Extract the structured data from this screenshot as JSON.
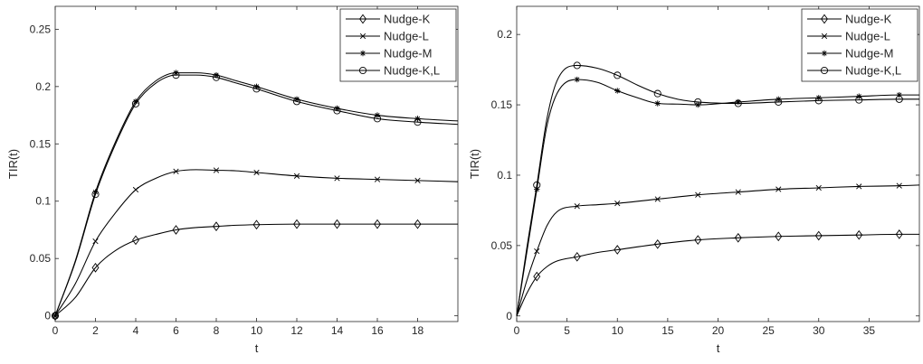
{
  "chart_data": [
    {
      "type": "line",
      "xlabel": "t",
      "ylabel": "TIR(t)",
      "xlim": [
        0,
        20
      ],
      "ylim": [
        -0.005,
        0.27
      ],
      "xticks": [
        0,
        2,
        4,
        6,
        8,
        10,
        12,
        14,
        16,
        18
      ],
      "yticks": [
        0,
        0.05,
        0.1,
        0.15,
        0.2,
        0.25
      ],
      "xtick_labels": [
        "0",
        "2",
        "4",
        "6",
        "8",
        "10",
        "12",
        "14",
        "16",
        "18"
      ],
      "ytick_labels": [
        "0",
        "0.05",
        "0.1",
        "0.15",
        "0.2",
        "0.25"
      ],
      "grid": false,
      "legend_position": "top-right",
      "series": [
        {
          "name": "Nudge-K",
          "marker": "diamond",
          "x": [
            0,
            1,
            2,
            3,
            4,
            5,
            6,
            7,
            8,
            9,
            10,
            12,
            14,
            16,
            18,
            20
          ],
          "y": [
            0,
            0.016,
            0.042,
            0.057,
            0.066,
            0.071,
            0.075,
            0.077,
            0.078,
            0.079,
            0.0795,
            0.08,
            0.08,
            0.08,
            0.08,
            0.08
          ],
          "marker_x": [
            0,
            2,
            4,
            6,
            8,
            10,
            12,
            14,
            16,
            18
          ]
        },
        {
          "name": "Nudge-L",
          "marker": "x",
          "x": [
            0,
            1,
            2,
            3,
            4,
            5,
            6,
            7,
            8,
            9,
            10,
            12,
            14,
            16,
            18,
            20
          ],
          "y": [
            0,
            0.028,
            0.065,
            0.09,
            0.11,
            0.12,
            0.126,
            0.1275,
            0.127,
            0.1265,
            0.125,
            0.122,
            0.12,
            0.119,
            0.118,
            0.117
          ],
          "marker_x": [
            0,
            2,
            4,
            6,
            8,
            10,
            12,
            14,
            16,
            18
          ]
        },
        {
          "name": "Nudge-M",
          "marker": "star",
          "x": [
            0,
            1,
            2,
            3,
            4,
            5,
            6,
            7,
            8,
            9,
            10,
            12,
            14,
            16,
            18,
            20
          ],
          "y": [
            0,
            0.048,
            0.108,
            0.152,
            0.187,
            0.205,
            0.212,
            0.212,
            0.21,
            0.205,
            0.2,
            0.189,
            0.181,
            0.175,
            0.172,
            0.17
          ],
          "marker_x": [
            0,
            2,
            4,
            6,
            8,
            10,
            12,
            14,
            16,
            18
          ]
        },
        {
          "name": "Nudge-K,L",
          "marker": "circle",
          "x": [
            0,
            1,
            2,
            3,
            4,
            5,
            6,
            7,
            8,
            9,
            10,
            12,
            14,
            16,
            18,
            20
          ],
          "y": [
            0,
            0.047,
            0.106,
            0.15,
            0.185,
            0.203,
            0.21,
            0.21,
            0.208,
            0.203,
            0.198,
            0.187,
            0.179,
            0.172,
            0.169,
            0.167
          ],
          "marker_x": [
            0,
            2,
            4,
            6,
            8,
            10,
            12,
            14,
            16,
            18
          ]
        }
      ]
    },
    {
      "type": "line",
      "xlabel": "t",
      "ylabel": "TIR(t)",
      "xlim": [
        0,
        40
      ],
      "ylim": [
        -0.004,
        0.22
      ],
      "xticks": [
        0,
        5,
        10,
        15,
        20,
        25,
        30,
        35
      ],
      "yticks": [
        0,
        0.05,
        0.1,
        0.15,
        0.2
      ],
      "xtick_labels": [
        "0",
        "5",
        "10",
        "15",
        "20",
        "25",
        "30",
        "35"
      ],
      "ytick_labels": [
        "0",
        "0.05",
        "0.1",
        "0.15",
        "0.2"
      ],
      "grid": false,
      "legend_position": "top-right",
      "series": [
        {
          "name": "Nudge-K",
          "marker": "diamond",
          "x": [
            0,
            1,
            2,
            3,
            4,
            6,
            8,
            10,
            14,
            18,
            22,
            26,
            30,
            34,
            38,
            40
          ],
          "y": [
            0,
            0.016,
            0.028,
            0.035,
            0.039,
            0.042,
            0.045,
            0.047,
            0.051,
            0.054,
            0.0555,
            0.0565,
            0.057,
            0.0575,
            0.058,
            0.058
          ],
          "marker_x": [
            2,
            6,
            10,
            14,
            18,
            22,
            26,
            30,
            34,
            38
          ]
        },
        {
          "name": "Nudge-L",
          "marker": "x",
          "x": [
            0,
            1,
            2,
            3,
            4,
            6,
            8,
            10,
            14,
            18,
            22,
            26,
            30,
            34,
            38,
            40
          ],
          "y": [
            0,
            0.025,
            0.046,
            0.064,
            0.074,
            0.078,
            0.079,
            0.08,
            0.083,
            0.086,
            0.088,
            0.09,
            0.091,
            0.092,
            0.0925,
            0.093
          ],
          "marker_x": [
            2,
            6,
            10,
            14,
            18,
            22,
            26,
            30,
            34,
            38
          ]
        },
        {
          "name": "Nudge-M",
          "marker": "star",
          "x": [
            0,
            1,
            2,
            3,
            4,
            6,
            8,
            10,
            12,
            14,
            16,
            18,
            22,
            26,
            30,
            34,
            38,
            40
          ],
          "y": [
            0,
            0.045,
            0.09,
            0.135,
            0.158,
            0.168,
            0.166,
            0.16,
            0.155,
            0.151,
            0.1505,
            0.15,
            0.152,
            0.154,
            0.155,
            0.156,
            0.157,
            0.157
          ],
          "marker_x": [
            2,
            6,
            10,
            14,
            18,
            22,
            26,
            30,
            34,
            38
          ]
        },
        {
          "name": "Nudge-K,L",
          "marker": "circle",
          "x": [
            0,
            1,
            2,
            3,
            4,
            6,
            8,
            10,
            12,
            14,
            16,
            18,
            22,
            26,
            30,
            34,
            38,
            40
          ],
          "y": [
            0,
            0.048,
            0.093,
            0.14,
            0.167,
            0.178,
            0.176,
            0.171,
            0.164,
            0.158,
            0.154,
            0.152,
            0.151,
            0.152,
            0.153,
            0.1535,
            0.154,
            0.154
          ],
          "marker_x": [
            2,
            6,
            10,
            14,
            18,
            22,
            26,
            30,
            34,
            38
          ]
        }
      ]
    }
  ]
}
